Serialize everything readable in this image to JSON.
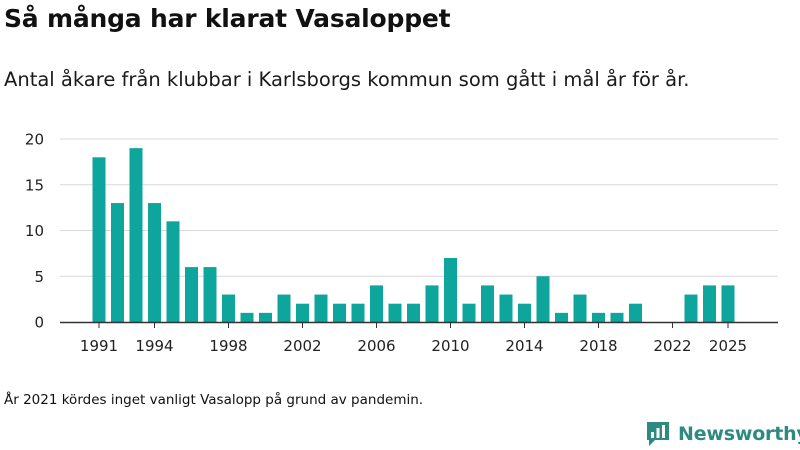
{
  "header": {
    "title": "Så många har klarat Vasaloppet",
    "subtitle": "Antal åkare från klubbar i Karlsborgs kommun som gått i mål år för år."
  },
  "footer": {
    "note": "År 2021 kördes inget vanligt Vasalopp på grund av pandemin.",
    "brand": "Newsworthy",
    "brand_icon": "newsworthy-logo-icon"
  },
  "colors": {
    "bar": "#0da59c",
    "grid": "#d9d9d9",
    "axis": "#333333",
    "brand": "#2c8a80"
  },
  "chart_data": {
    "type": "bar",
    "title": "Så många har klarat Vasaloppet",
    "xlabel": "",
    "ylabel": "",
    "ylim": [
      0,
      20
    ],
    "yticks": [
      0,
      5,
      10,
      15,
      20
    ],
    "ytick_labels": [
      "0",
      "5",
      "10",
      "15",
      "20"
    ],
    "xticks": [
      1991,
      1994,
      1998,
      2002,
      2006,
      2010,
      2014,
      2018,
      2022,
      2025
    ],
    "xtick_labels": [
      "1991",
      "1994",
      "1998",
      "2002",
      "2006",
      "2010",
      "2014",
      "2018",
      "2022",
      "2025"
    ],
    "grid": true,
    "categories": [
      1991,
      1992,
      1993,
      1994,
      1995,
      1996,
      1997,
      1998,
      1999,
      2000,
      2001,
      2002,
      2003,
      2004,
      2005,
      2006,
      2007,
      2008,
      2009,
      2010,
      2011,
      2012,
      2013,
      2014,
      2015,
      2016,
      2017,
      2018,
      2019,
      2020,
      2021,
      2022,
      2023,
      2024,
      2025
    ],
    "values": [
      18,
      13,
      19,
      13,
      11,
      6,
      6,
      3,
      1,
      1,
      3,
      2,
      3,
      2,
      2,
      4,
      2,
      2,
      4,
      7,
      2,
      4,
      3,
      2,
      5,
      1,
      3,
      1,
      1,
      2,
      null,
      0,
      3,
      4,
      4
    ]
  }
}
